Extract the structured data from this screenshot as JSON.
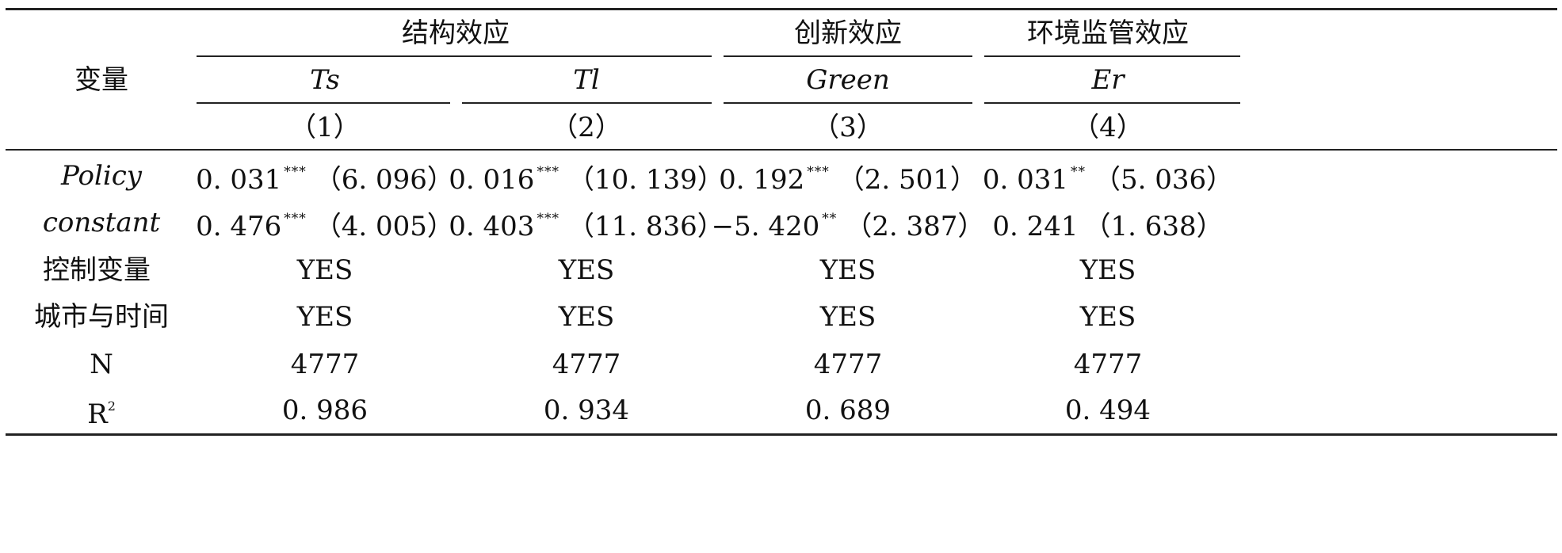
{
  "header": {
    "variable_label": "变量",
    "groups": [
      "结构效应",
      "创新效应",
      "环境监管效应"
    ],
    "dependent_vars": [
      "Ts",
      "Tl",
      "Green",
      "Er"
    ],
    "column_numbers": [
      "（1）",
      "（2）",
      "（3）",
      "（4）"
    ]
  },
  "rows": [
    {
      "label": "Policy",
      "cells": [
        {
          "coef": "0. 031",
          "sig": "***",
          "se": "（6. 096）"
        },
        {
          "coef": "0. 016",
          "sig": "***",
          "se": "（10. 139）"
        },
        {
          "coef": "0. 192",
          "sig": "***",
          "se": "（2. 501）"
        },
        {
          "coef": "0. 031",
          "sig": "**",
          "se": "（5. 036）"
        }
      ]
    },
    {
      "label": "constant",
      "cells": [
        {
          "coef": "0. 476",
          "sig": "***",
          "se": "（4. 005）"
        },
        {
          "coef": "0. 403",
          "sig": "***",
          "se": "（11. 836）"
        },
        {
          "coef": "−5. 420",
          "sig": "**",
          "se": "（2. 387）"
        },
        {
          "coef": "0. 241",
          "sig": "",
          "se": "（1. 638）"
        }
      ]
    }
  ],
  "simple_rows": [
    {
      "label": "控制变量",
      "values": [
        "YES",
        "YES",
        "YES",
        "YES"
      ]
    },
    {
      "label": "城市与时间",
      "values": [
        "YES",
        "YES",
        "YES",
        "YES"
      ]
    },
    {
      "label": "N",
      "values": [
        "4777",
        "4777",
        "4777",
        "4777"
      ]
    }
  ],
  "r2_row": {
    "label": "R",
    "label_sup": "2",
    "values": [
      "0. 986",
      "0. 934",
      "0. 689",
      "0. 494"
    ]
  }
}
